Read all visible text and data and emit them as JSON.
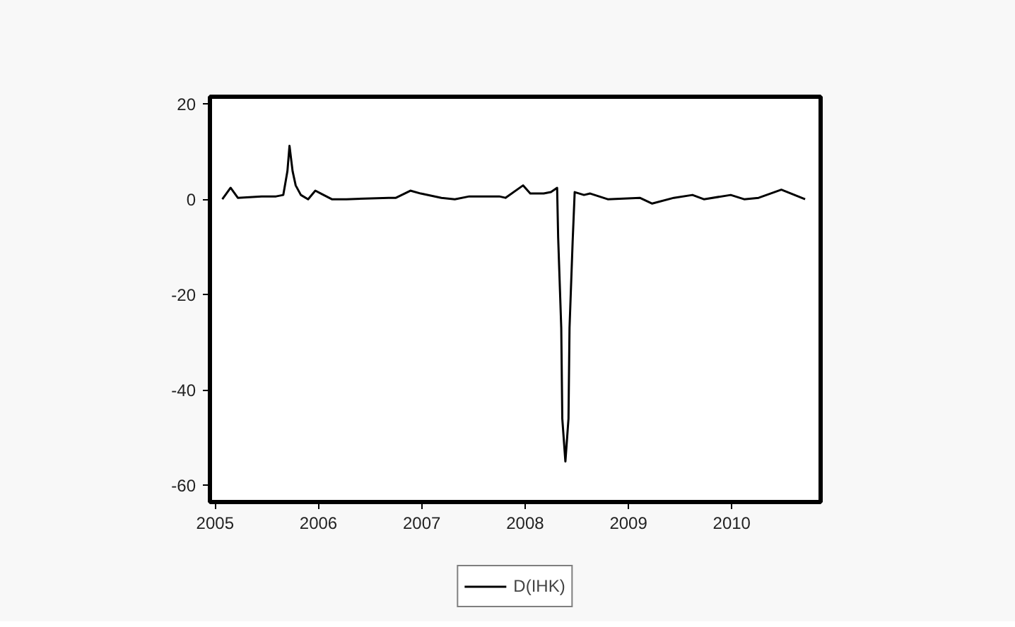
{
  "chart_data": {
    "type": "line",
    "xlim": [
      2004.95,
      2010.86
    ],
    "ylim": [
      -63.5,
      21.5
    ],
    "xticks": [
      2005,
      2006,
      2007,
      2008,
      2009,
      2010
    ],
    "yticks": [
      20,
      0,
      -20,
      -40,
      -60
    ],
    "x": [
      2005.07,
      2005.15,
      2005.22,
      2005.45,
      2005.59,
      2005.66,
      2005.7,
      2005.72,
      2005.75,
      2005.78,
      2005.83,
      2005.9,
      2005.97,
      2006.04,
      2006.13,
      2006.27,
      2006.68,
      2006.75,
      2006.89,
      2006.99,
      2007.19,
      2007.32,
      2007.46,
      2007.75,
      2007.81,
      2007.98,
      2008.05,
      2008.18,
      2008.25,
      2008.31,
      2008.32,
      2008.35,
      2008.36,
      2008.39,
      2008.42,
      2008.43,
      2008.46,
      2008.48,
      2008.57,
      2008.63,
      2008.8,
      2009.11,
      2009.23,
      2009.44,
      2009.62,
      2009.73,
      2009.99,
      2010.12,
      2010.26,
      2010.48,
      2010.71
    ],
    "series": [
      {
        "name": "D(IHK)",
        "color": "#000000",
        "values": [
          0,
          2.4,
          0.3,
          0.6,
          0.6,
          0.9,
          5.9,
          11.2,
          5.9,
          2.9,
          0.9,
          0,
          1.8,
          1,
          0,
          0,
          0.3,
          0.3,
          1.8,
          1.2,
          0.3,
          0,
          0.6,
          0.6,
          0.3,
          2.9,
          1.2,
          1.2,
          1.5,
          2.4,
          -8,
          -27,
          -46,
          -55,
          -46,
          -27,
          -9,
          1.5,
          0.9,
          1.2,
          0,
          0.3,
          -0.9,
          0.3,
          0.9,
          0,
          0.9,
          0,
          0.3,
          2,
          0
        ]
      }
    ],
    "grid": false,
    "legend": "bottom",
    "marker": "none",
    "line_style": "solid"
  }
}
